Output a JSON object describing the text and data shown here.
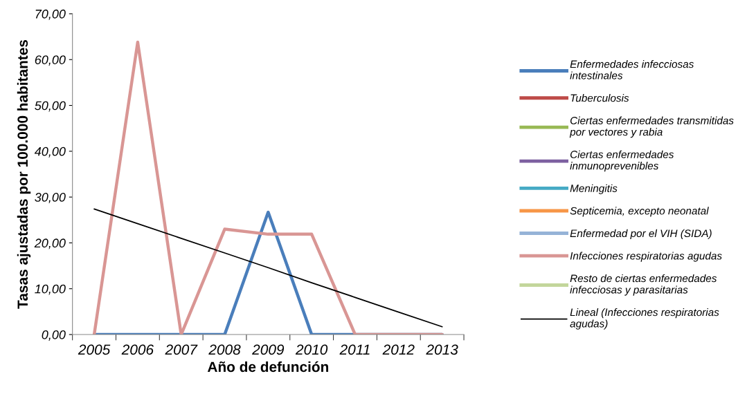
{
  "chart_data": {
    "type": "line",
    "xlabel": "Año de defunción",
    "ylabel": "Tasas ajustadas por 100.000 habitantes",
    "categories": [
      "2005",
      "2006",
      "2007",
      "2008",
      "2009",
      "2010",
      "2011",
      "2012",
      "2013"
    ],
    "ylim": [
      0,
      70
    ],
    "yticks": [
      {
        "value": 0,
        "label": "0,00"
      },
      {
        "value": 10,
        "label": "10,00"
      },
      {
        "value": 20,
        "label": "20,00"
      },
      {
        "value": 30,
        "label": "30,00"
      },
      {
        "value": 40,
        "label": "40,00"
      },
      {
        "value": 50,
        "label": "50,00"
      },
      {
        "value": 60,
        "label": "60,00"
      },
      {
        "value": 70,
        "label": "70,00"
      }
    ],
    "grid": false,
    "legend": "right",
    "line_style": "solid",
    "marker": "none",
    "series": [
      {
        "name": "Enfermedades infecciosas\nintestinales",
        "color": "#4a7ebb",
        "values": [
          0,
          0,
          0,
          0,
          26.7,
          0,
          0,
          0,
          0
        ]
      },
      {
        "name": "Tuberculosis",
        "color": "#be4b48",
        "values": [
          null,
          null,
          null,
          null,
          null,
          null,
          null,
          null,
          null
        ]
      },
      {
        "name": "Ciertas enfermedades transmitidas\npor vectores y rabia",
        "color": "#98b954",
        "values": [
          null,
          null,
          null,
          null,
          null,
          null,
          null,
          null,
          null
        ]
      },
      {
        "name": "Ciertas enfermedades\ninmunoprevenibles",
        "color": "#7d60a0",
        "values": [
          null,
          null,
          null,
          null,
          null,
          null,
          null,
          null,
          null
        ]
      },
      {
        "name": "Meningitis",
        "color": "#46aac5",
        "values": [
          null,
          null,
          null,
          null,
          null,
          null,
          null,
          null,
          null
        ]
      },
      {
        "name": "Septicemia, excepto neonatal",
        "color": "#f79646",
        "values": [
          null,
          null,
          null,
          null,
          null,
          null,
          null,
          null,
          null
        ]
      },
      {
        "name": "Enfermedad por el VIH (SIDA)",
        "color": "#95b3d7",
        "values": [
          null,
          null,
          null,
          null,
          null,
          null,
          null,
          null,
          null
        ]
      },
      {
        "name": "Infecciones respiratorias agudas",
        "color": "#d99694",
        "values": [
          0,
          63.8,
          0,
          23.0,
          21.9,
          21.9,
          0,
          0,
          0
        ]
      },
      {
        "name": "Resto de ciertas enfermedades\ninfecciosas y parasitarias",
        "color": "#c3d69b",
        "values": [
          null,
          null,
          null,
          null,
          null,
          null,
          null,
          null,
          null
        ]
      },
      {
        "name": "Lineal (Infecciones respiratorias\nagudas)",
        "color": "#000000",
        "values": [
          27.4,
          24.2,
          21.0,
          17.8,
          14.6,
          11.3,
          8.1,
          4.9,
          1.7
        ]
      }
    ]
  }
}
